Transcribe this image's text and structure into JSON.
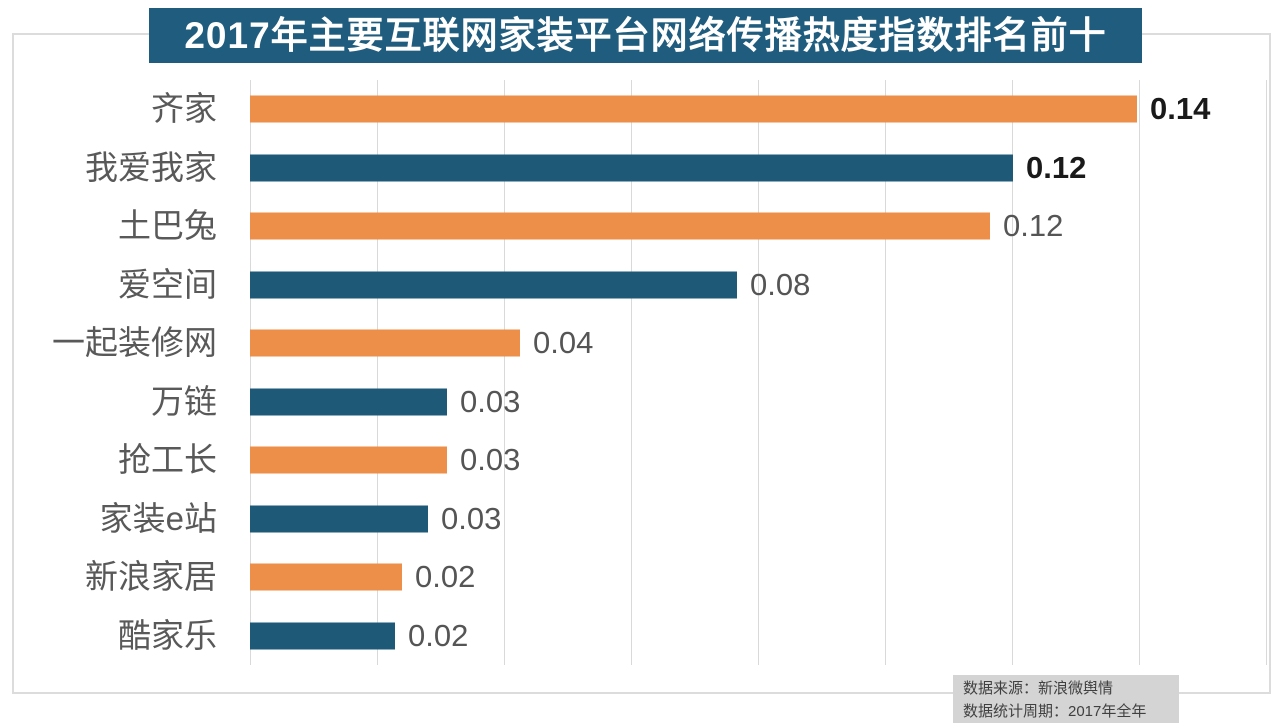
{
  "title": "2017年主要互联网家装平台网络传播热度指数排名前十",
  "chart_data": {
    "type": "bar",
    "orientation": "horizontal",
    "title": "2017年主要互联网家装平台网络传播热度指数排名前十",
    "categories": [
      "齐家",
      "我爱我家",
      "土巴兔",
      "爱空间",
      "一起装修网",
      "万链",
      "抢工长",
      "家装e站",
      "新浪家居",
      "酷家乐"
    ],
    "values": [
      0.14,
      0.12,
      0.12,
      0.08,
      0.04,
      0.03,
      0.03,
      0.03,
      0.02,
      0.02
    ],
    "value_labels": [
      "0.14",
      "0.12",
      "0.12",
      "0.08",
      "0.04",
      "0.03",
      "0.03",
      "0.03",
      "0.02",
      "0.02"
    ],
    "bar_lengths_estimated": [
      0.1397,
      0.1202,
      0.1165,
      0.0767,
      0.0425,
      0.031,
      0.031,
      0.028,
      0.0239,
      0.0228
    ],
    "bar_colors": [
      "#ee8f49",
      "#1e5a78",
      "#ee8f49",
      "#1e5a78",
      "#ee8f49",
      "#1e5a78",
      "#ee8f49",
      "#1e5a78",
      "#ee8f49",
      "#1e5a78"
    ],
    "value_label_emphasis": [
      true,
      true,
      false,
      false,
      false,
      false,
      false,
      false,
      false,
      false
    ],
    "xlabel": "",
    "ylabel": "",
    "xlim": [
      0,
      0.16
    ],
    "grid_step": 0.02,
    "grid": true,
    "legend_position": "none"
  },
  "colors": {
    "orange": "#ee8f49",
    "blue": "#1e5a78",
    "banner_bg": "#1f5c7d",
    "banner_text": "#ffffff",
    "gridline": "#d9d9d9",
    "chart_border": "#dcdcdc",
    "category_label": "#595959",
    "value_label": "#555555",
    "value_label_emphasis": "#1a1a1a",
    "footer_bg": "#d4d4d4",
    "footer_text": "#404040"
  },
  "footer": {
    "line1": "数据来源：新浪微舆情",
    "line2": "数据统计周期：2017年全年"
  }
}
